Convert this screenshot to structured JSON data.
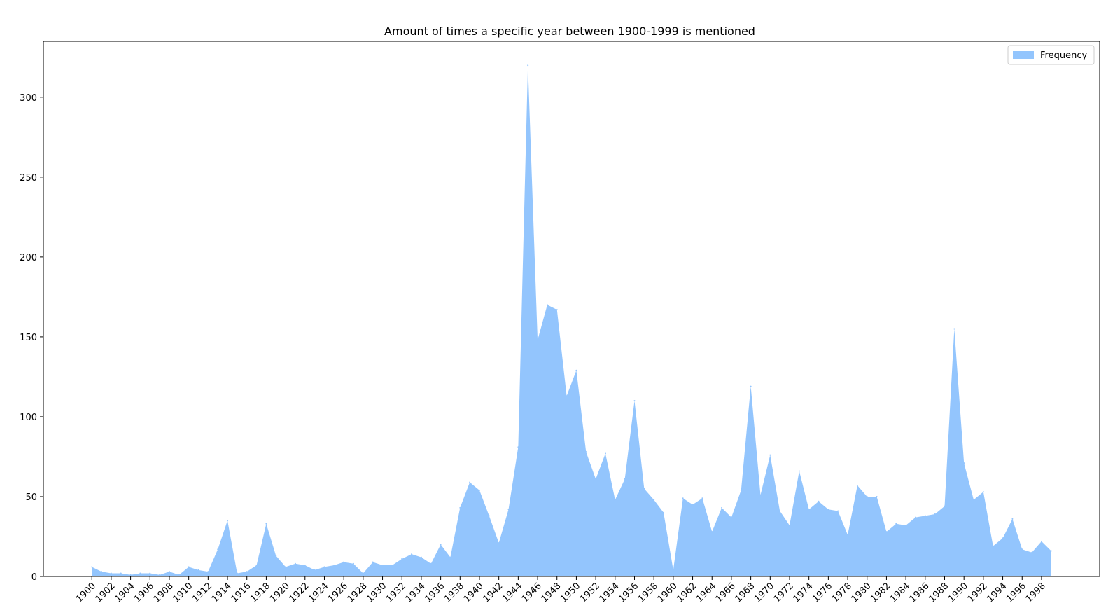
{
  "chart_data": {
    "type": "area",
    "title": "Amount of times a specific year between 1900-1999 is mentioned",
    "xlabel": "",
    "ylabel": "",
    "x": [
      1900,
      1901,
      1902,
      1903,
      1904,
      1905,
      1906,
      1907,
      1908,
      1909,
      1910,
      1911,
      1912,
      1913,
      1914,
      1915,
      1916,
      1917,
      1918,
      1919,
      1920,
      1921,
      1922,
      1923,
      1924,
      1925,
      1926,
      1927,
      1928,
      1929,
      1930,
      1931,
      1932,
      1933,
      1934,
      1935,
      1936,
      1937,
      1938,
      1939,
      1940,
      1941,
      1942,
      1943,
      1944,
      1945,
      1946,
      1947,
      1948,
      1949,
      1950,
      1951,
      1952,
      1953,
      1954,
      1955,
      1956,
      1957,
      1958,
      1959,
      1960,
      1961,
      1962,
      1963,
      1964,
      1965,
      1966,
      1967,
      1968,
      1969,
      1970,
      1971,
      1972,
      1973,
      1974,
      1975,
      1976,
      1977,
      1978,
      1979,
      1980,
      1981,
      1982,
      1983,
      1984,
      1985,
      1986,
      1987,
      1988,
      1989,
      1990,
      1991,
      1992,
      1993,
      1994,
      1995,
      1996,
      1997,
      1998,
      1999
    ],
    "series": [
      {
        "name": "Frequency",
        "color": "#93c5fd",
        "values": [
          6,
          3,
          2,
          2,
          1,
          2,
          2,
          1,
          3,
          1,
          6,
          4,
          3,
          17,
          35,
          2,
          3,
          7,
          33,
          13,
          6,
          8,
          7,
          4,
          6,
          7,
          9,
          8,
          2,
          9,
          7,
          7,
          11,
          14,
          12,
          8,
          20,
          12,
          43,
          59,
          54,
          38,
          21,
          42,
          81,
          320,
          148,
          170,
          167,
          113,
          129,
          78,
          61,
          77,
          48,
          61,
          110,
          55,
          48,
          40,
          4,
          49,
          45,
          49,
          28,
          43,
          37,
          54,
          119,
          51,
          76,
          41,
          32,
          66,
          42,
          47,
          42,
          41,
          26,
          57,
          50,
          50,
          28,
          33,
          32,
          37,
          38,
          39,
          44,
          155,
          71,
          48,
          53,
          19,
          24,
          36,
          17,
          15,
          22,
          16
        ]
      }
    ],
    "xticks": [
      "1900",
      "1902",
      "1904",
      "1906",
      "1908",
      "1910",
      "1912",
      "1914",
      "1916",
      "1918",
      "1920",
      "1922",
      "1924",
      "1926",
      "1928",
      "1930",
      "1932",
      "1934",
      "1936",
      "1938",
      "1940",
      "1942",
      "1944",
      "1946",
      "1948",
      "1950",
      "1952",
      "1954",
      "1956",
      "1958",
      "1960",
      "1962",
      "1964",
      "1966",
      "1968",
      "1970",
      "1972",
      "1974",
      "1976",
      "1978",
      "1980",
      "1982",
      "1984",
      "1986",
      "1988",
      "1990",
      "1992",
      "1994",
      "1996",
      "1998"
    ],
    "yticks": [
      "0",
      "50",
      "100",
      "150",
      "200",
      "250",
      "300"
    ],
    "xlim": [
      1895,
      2004
    ],
    "ylim": [
      0,
      335
    ],
    "legend": {
      "position": "top-right",
      "entries": [
        "Frequency"
      ]
    },
    "grid": false
  }
}
